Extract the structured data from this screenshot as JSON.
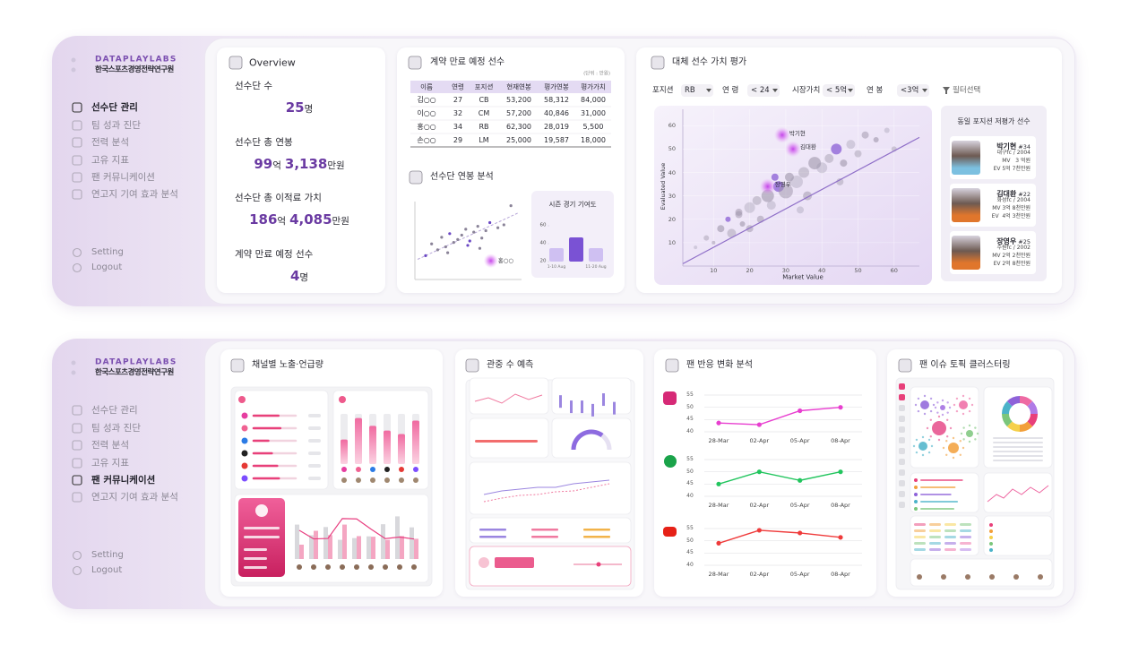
{
  "panels": [
    {
      "brand": "DATAPLAYLABS",
      "org": "한국스포츠경영전략연구원",
      "menu": [
        "선수단 관리",
        "팀 성과 진단",
        "전력 분석",
        "고유 지표",
        "팬 커뮤니케이션",
        "연고지 기여 효과 분석"
      ],
      "active": 0,
      "footer": [
        "Setting",
        "Logout"
      ]
    },
    {
      "brand": "DATAPLAYLABS",
      "org": "한국스포츠경영전략연구원",
      "menu": [
        "선수단 관리",
        "팀 성과 진단",
        "전력 분석",
        "고유 지표",
        "팬 커뮤니케이션",
        "연고지 기여 효과 분석"
      ],
      "active": 4,
      "footer": [
        "Setting",
        "Logout"
      ]
    }
  ],
  "overview": {
    "title": "Overview",
    "items": [
      {
        "label": "선수단 수",
        "value": "25",
        "unit": "명"
      },
      {
        "label": "선수단 총 연봉",
        "value": "99",
        "unit": "억",
        "value2": "3,138",
        "unit2": "만원"
      },
      {
        "label": "선수단 총 이적료 가치",
        "value": "186",
        "unit": "억",
        "value2": "4,085",
        "unit2": "만원"
      },
      {
        "label": "계약 만료 예정 선수",
        "value": "4",
        "unit": "명"
      }
    ]
  },
  "contract": {
    "title": "계약 만료 예정 선수",
    "unit_note": "(단위 : 만원)",
    "columns": [
      "이름",
      "연령",
      "포지션",
      "현재연봉",
      "평가연봉",
      "평가가치"
    ],
    "rows": [
      [
        "김○○",
        "27",
        "CB",
        "53,200",
        "58,312",
        "84,000"
      ],
      [
        "이○○",
        "32",
        "CM",
        "57,200",
        "40,846",
        "31,000"
      ],
      [
        "홍○○",
        "34",
        "RB",
        "62,300",
        "28,019",
        "5,500"
      ],
      [
        "손○○",
        "29",
        "LM",
        "25,000",
        "19,587",
        "18,000"
      ]
    ]
  },
  "salary": {
    "title": "선수단 연봉 분석",
    "x": [
      8,
      14,
      20,
      24,
      28,
      32,
      36,
      40,
      44,
      48,
      52,
      56,
      60,
      64,
      68,
      72,
      80,
      86,
      93,
      30,
      50,
      62
    ],
    "y": [
      30,
      46,
      38,
      55,
      42,
      60,
      48,
      52,
      58,
      66,
      50,
      62,
      70,
      54,
      64,
      75,
      68,
      72,
      98,
      34,
      44,
      40
    ],
    "xlim": [
      0,
      100
    ],
    "ylim": [
      0,
      100
    ],
    "trend_x": [
      0,
      100
    ],
    "trend_y": [
      25,
      88
    ],
    "highlight": {
      "label": "홍○○",
      "x": 73,
      "y": 23
    }
  },
  "season": {
    "title": "시즌 경기 기여도",
    "type": "bar",
    "categories": [
      "1-10 Aug",
      null,
      "11-20 Aug"
    ],
    "values": [
      35,
      47,
      35
    ],
    "colors": [
      "#cfc0f2",
      "#7a52d4",
      "#cfc0f2"
    ],
    "ylim": [
      20,
      60
    ],
    "yticks": [
      20,
      40,
      60
    ]
  },
  "replacement": {
    "title": "대체 선수 가치 평가",
    "filters": [
      {
        "label": "포지션",
        "value": "RB"
      },
      {
        "label": "연 령",
        "value": "< 24"
      },
      {
        "label": "시장가치",
        "value": "< 5억"
      },
      {
        "label": "연 봉",
        "value": "<3억"
      }
    ],
    "filter_button": "필터선택",
    "chart": {
      "type": "scatter",
      "xlabel": "Market Value",
      "ylabel": "Evaluated Value",
      "xlim": [
        0,
        67
      ],
      "ylim": [
        0,
        67
      ],
      "xticks": [
        10,
        20,
        30,
        40,
        50,
        60
      ],
      "yticks": [
        10,
        20,
        30,
        40,
        50,
        60
      ],
      "x": [
        5,
        8,
        10,
        12,
        14,
        15,
        17,
        18,
        20,
        22,
        23,
        25,
        26,
        28,
        30,
        31,
        33,
        35,
        36,
        38,
        40,
        42,
        44,
        46,
        48,
        50,
        52,
        55,
        58,
        60,
        20,
        27,
        34,
        45,
        17
      ],
      "y": [
        8,
        12,
        10,
        16,
        20,
        14,
        22,
        18,
        25,
        28,
        20,
        30,
        26,
        34,
        32,
        38,
        36,
        40,
        30,
        44,
        42,
        46,
        50,
        44,
        52,
        48,
        56,
        54,
        58,
        50,
        16,
        38,
        24,
        36,
        23
      ],
      "size": [
        2,
        3,
        2,
        4,
        3,
        5,
        4,
        3,
        6,
        5,
        4,
        7,
        5,
        6,
        8,
        5,
        7,
        6,
        5,
        7,
        6,
        5,
        6,
        4,
        5,
        4,
        4,
        3,
        3,
        3,
        4,
        4,
        4,
        4,
        4
      ],
      "trend_x": [
        1.5,
        67
      ],
      "trend_y": [
        1,
        55
      ],
      "highlights": [
        {
          "name": "박기현",
          "x": 29,
          "y": 56
        },
        {
          "name": "김대환",
          "x": 32,
          "y": 50
        },
        {
          "name": "장영우",
          "x": 25,
          "y": 34
        }
      ]
    },
    "similar": {
      "title": "동일 포지션 저평가 선수",
      "players": [
        {
          "name": "박기현",
          "number": "#34",
          "team": "대구fc / 2004",
          "mv": "MV   3 억원",
          "ev": "EV 5억 7천만원"
        },
        {
          "name": "김대환",
          "number": "#22",
          "team": "화성fc / 2004",
          "mv": "MV 3억 8천만원",
          "ev": "EV  4억 3천만원"
        },
        {
          "name": "장영우",
          "number": "#25",
          "team": "수원fc / 2002",
          "mv": "MV 2억 2천만원",
          "ev": "EV 2억 8천만원"
        }
      ]
    }
  },
  "channel": {
    "title": "채널별 노출·언급량"
  },
  "attendance": {
    "title": "관중 수 예측"
  },
  "fan": {
    "title": "팬 반응 변화 분석",
    "categories": [
      "28-Mar",
      "02-Apr",
      "05-Apr",
      "08-Apr"
    ],
    "ylim": [
      40,
      55
    ],
    "yticks": [
      40,
      45,
      50,
      55
    ],
    "series": [
      {
        "color": "#e83fd0",
        "values": [
          43.6,
          42.9,
          48.6,
          50
        ]
      },
      {
        "color": "#22c55e",
        "values": [
          45,
          50,
          46.5,
          50
        ]
      },
      {
        "color": "#ef3b3b",
        "values": [
          49,
          54.3,
          53.2,
          51.4
        ]
      }
    ]
  },
  "topic": {
    "title": "팬 이슈 토픽 클러스터링"
  }
}
